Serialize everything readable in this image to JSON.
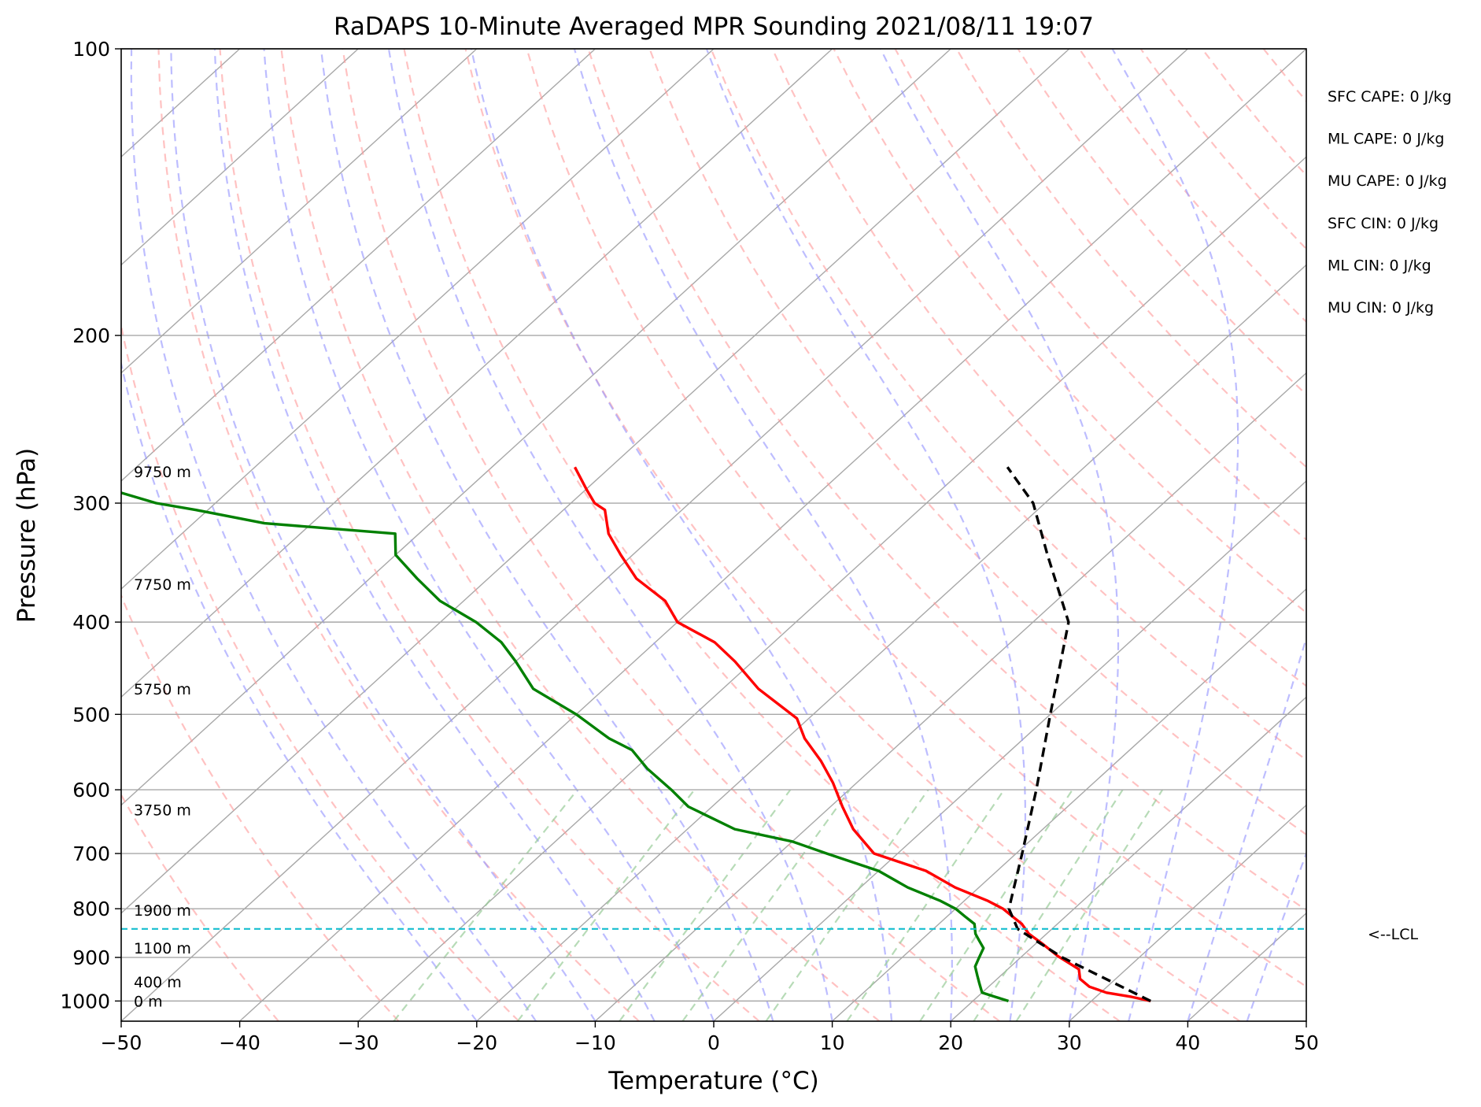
{
  "chart_data": {
    "type": "line",
    "title": "RaDAPS 10-Minute Averaged MPR Sounding 2021/08/11 19:07",
    "xlabel": "Temperature (°C)",
    "ylabel": "Pressure (hPa)",
    "xlim": [
      -50,
      50
    ],
    "ylim": [
      1050,
      100
    ],
    "y_scale": "log",
    "skew": "skew-T log-P",
    "x_ticks": [
      "−50",
      "−40",
      "−30",
      "−20",
      "−10",
      "0",
      "10",
      "20",
      "30",
      "40",
      "50"
    ],
    "y_ticks": [
      "100",
      "200",
      "300",
      "400",
      "500",
      "600",
      "700",
      "800",
      "900",
      "1000"
    ],
    "grid": true,
    "series": [
      {
        "color": "#ff0000",
        "points": [
          [
            35.0,
            1000
          ],
          [
            33.0,
            990
          ],
          [
            30.5,
            980
          ],
          [
            28.5,
            966
          ],
          [
            27.0,
            948
          ],
          [
            26.0,
            926
          ],
          [
            23.0,
            897
          ],
          [
            20.5,
            870
          ],
          [
            18.5,
            850
          ],
          [
            17.0,
            830
          ],
          [
            15.5,
            815
          ],
          [
            14.0,
            800
          ],
          [
            12.0,
            785
          ],
          [
            8.0,
            760
          ],
          [
            4.0,
            730
          ],
          [
            -2.0,
            700
          ],
          [
            -6.0,
            660
          ],
          [
            -9.0,
            625
          ],
          [
            -12.0,
            590
          ],
          [
            -15.0,
            560
          ],
          [
            -18.5,
            530
          ],
          [
            -21.0,
            505
          ],
          [
            -27.0,
            470
          ],
          [
            -31.5,
            440
          ],
          [
            -35.0,
            420
          ],
          [
            -40.0,
            400
          ],
          [
            -43.0,
            380
          ],
          [
            -47.5,
            360
          ],
          [
            -51.0,
            340
          ],
          [
            -54.0,
            323
          ],
          [
            -56.5,
            305
          ],
          [
            -58.0,
            300
          ],
          [
            -60.0,
            290
          ],
          [
            -63.0,
            275
          ]
        ]
      },
      {
        "color": "#008000",
        "points": [
          [
            23.0,
            1000
          ],
          [
            21.5,
            990
          ],
          [
            20.0,
            980
          ],
          [
            19.0,
            960
          ],
          [
            18.0,
            940
          ],
          [
            17.0,
            920
          ],
          [
            16.5,
            900
          ],
          [
            16.0,
            880
          ],
          [
            15.0,
            865
          ],
          [
            14.0,
            850
          ],
          [
            13.0,
            830
          ],
          [
            11.5,
            815
          ],
          [
            10.0,
            800
          ],
          [
            8.0,
            785
          ],
          [
            4.0,
            760
          ],
          [
            0.0,
            730
          ],
          [
            -6.0,
            700
          ],
          [
            -10.0,
            680
          ],
          [
            -16.0,
            660
          ],
          [
            -22.0,
            625
          ],
          [
            -25.0,
            600
          ],
          [
            -29.0,
            570
          ],
          [
            -32.0,
            545
          ],
          [
            -35.0,
            530
          ],
          [
            -40.0,
            500
          ],
          [
            -46.0,
            470
          ],
          [
            -50.0,
            440
          ],
          [
            -53.0,
            420
          ],
          [
            -57.0,
            400
          ],
          [
            -62.0,
            380
          ],
          [
            -66.0,
            360
          ],
          [
            -70.0,
            340
          ],
          [
            -72.0,
            323
          ],
          [
            -84.0,
            315
          ],
          [
            -91.0,
            305
          ],
          [
            -95.0,
            300
          ],
          [
            -103.0,
            285
          ],
          [
            -109.0,
            275
          ]
        ]
      },
      {
        "color": "#000000",
        "dashed": true,
        "points": [
          [
            35.0,
            1000
          ],
          [
            23.5,
            900
          ],
          [
            17.1,
            840
          ],
          [
            14.5,
            800
          ],
          [
            10.5,
            700
          ],
          [
            5.8,
            600
          ],
          [
            0.0,
            500
          ],
          [
            -7.0,
            400
          ],
          [
            -15.0,
            340
          ],
          [
            -21.0,
            300
          ],
          [
            -26.5,
            275
          ]
        ]
      }
    ],
    "lcl_pressure": 840,
    "lcl_label": "<--LCL",
    "height_labels": [
      {
        "text": "0 m",
        "p": 1000
      },
      {
        "text": "400 m",
        "p": 955
      },
      {
        "text": "1100 m",
        "p": 880
      },
      {
        "text": "1900 m",
        "p": 803
      },
      {
        "text": "3750 m",
        "p": 630
      },
      {
        "text": "5750 m",
        "p": 470
      },
      {
        "text": "7750 m",
        "p": 365
      },
      {
        "text": "9750 m",
        "p": 278
      }
    ],
    "annotations": [
      "SFC CAPE: 0 J/kg",
      "ML CAPE: 0 J/kg",
      "MU CAPE: 0 J/kg",
      "SFC CIN: 0 J/kg",
      "ML CIN: 0 J/kg",
      "MU CIN: 0 J/kg"
    ],
    "reference_lines": {
      "isotherms_color": "#a8a8a8",
      "dry_adiabat_color": "#ff9999",
      "moist_adiabat_color": "#9999ff",
      "mixing_ratio_color": "#99cc99",
      "lcl_color": "#17becf"
    }
  }
}
